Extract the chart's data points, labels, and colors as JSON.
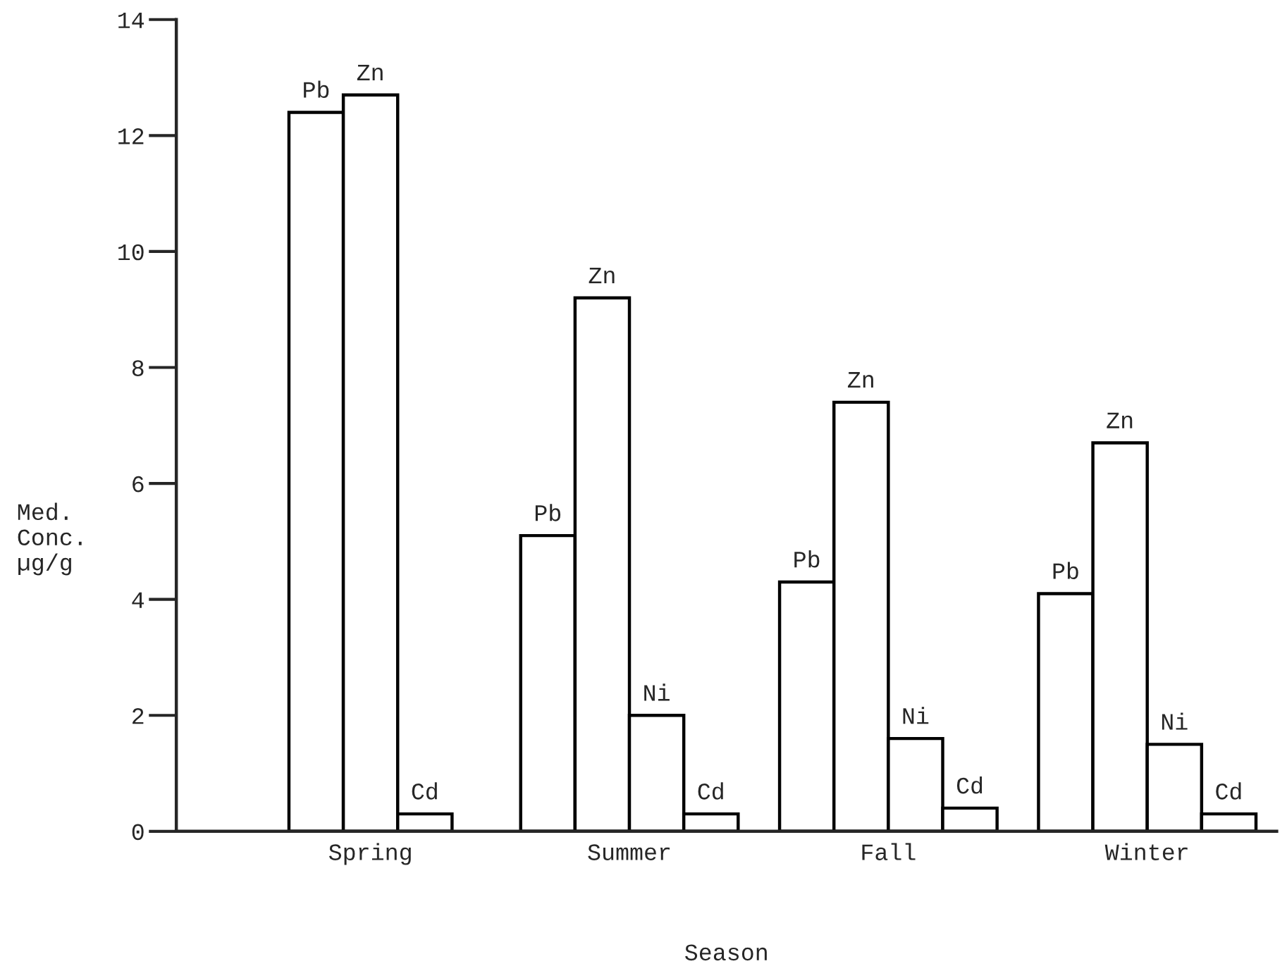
{
  "chart_data": {
    "type": "bar",
    "xlabel": "Season",
    "ylabel": "Med.\nConc.\nµg/g",
    "categories": [
      "Spring",
      "Summer",
      "Fall",
      "Winter"
    ],
    "series": [
      {
        "name": "Pb",
        "color": "#ffffff",
        "values": [
          12.4,
          5.1,
          4.3,
          4.1
        ]
      },
      {
        "name": "Zn",
        "color": "#ffffff",
        "values": [
          12.7,
          9.2,
          7.4,
          6.7
        ]
      },
      {
        "name": "Ni",
        "color": "#ffffff",
        "values": [
          null,
          2.0,
          1.6,
          1.5
        ]
      },
      {
        "name": "Cd",
        "color": "#ffffff",
        "values": [
          0.3,
          0.3,
          0.4,
          0.3
        ]
      }
    ],
    "ylim": [
      0,
      14
    ],
    "yticks": [
      0,
      2,
      4,
      6,
      8,
      10,
      12,
      14
    ],
    "grid": false,
    "legend": false
  }
}
